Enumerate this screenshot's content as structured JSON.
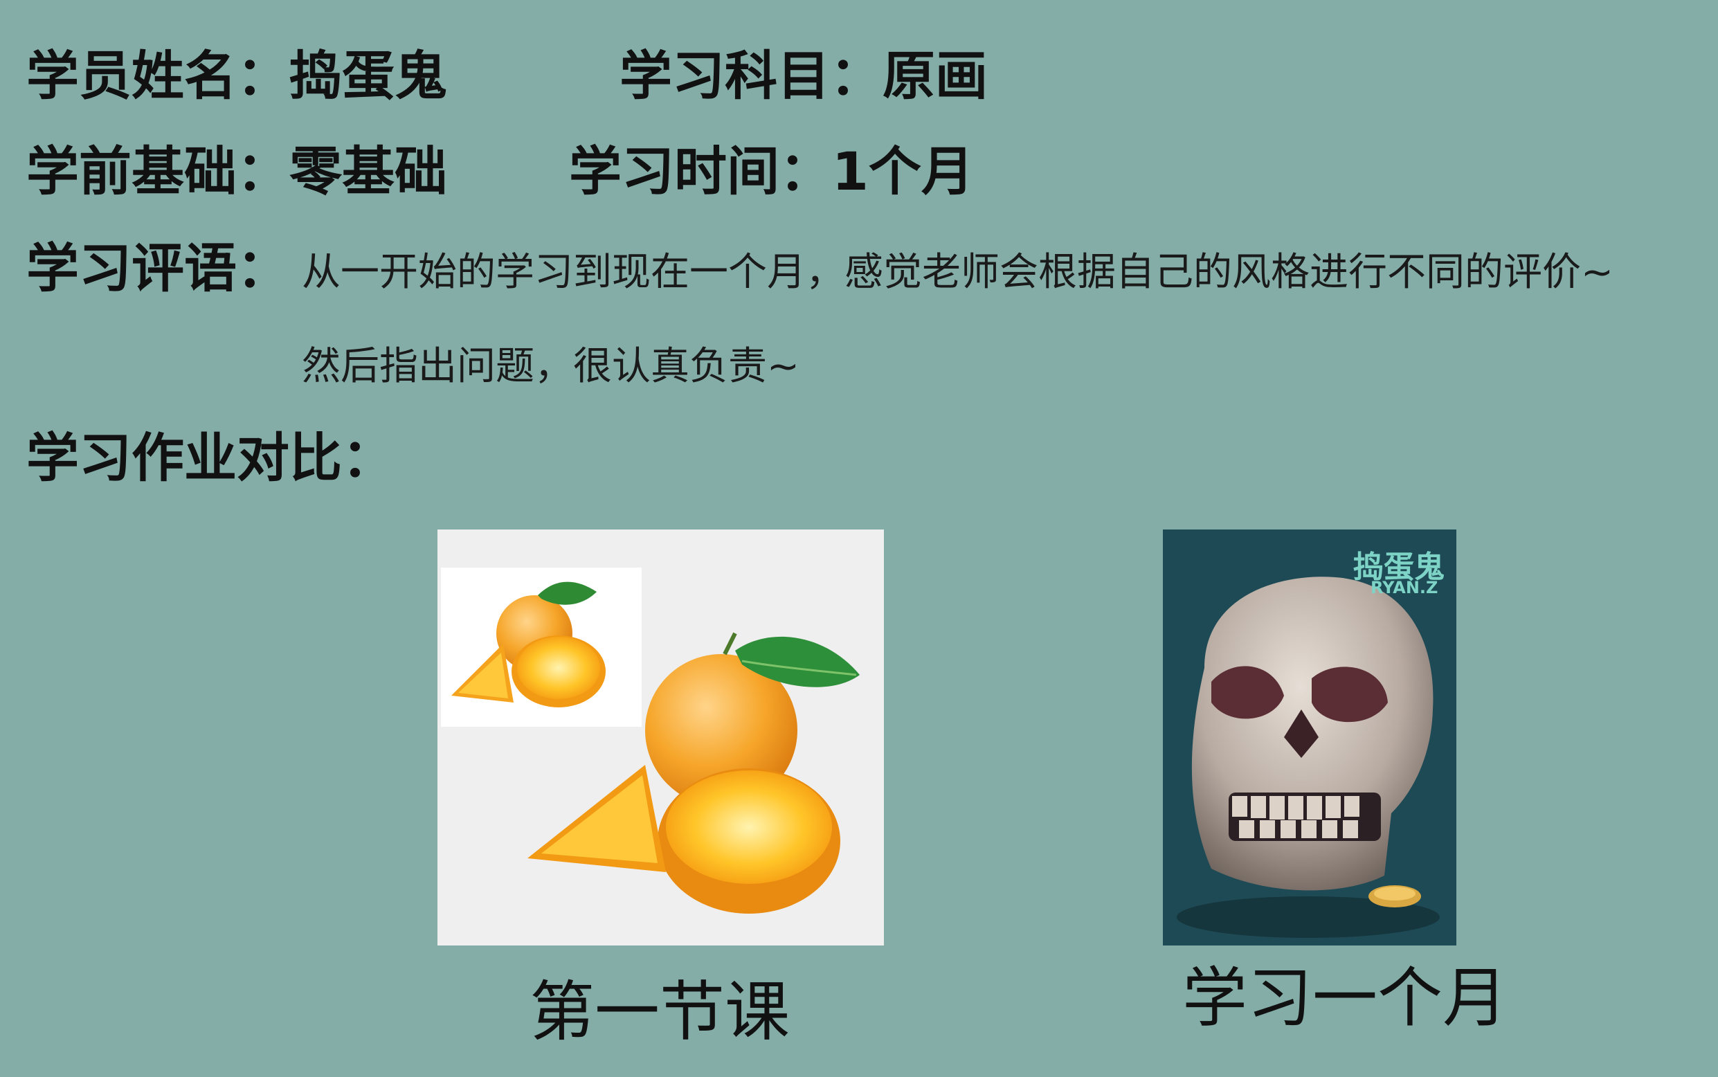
{
  "profile": {
    "name_label": "学员姓名：",
    "name_value": "捣蛋鬼",
    "subject_label": "学习科目：",
    "subject_value": "原画",
    "foundation_label": "学前基础：",
    "foundation_value": "零基础",
    "duration_label": "学习时间：",
    "duration_value": "1个月"
  },
  "review": {
    "label": "学习评语：",
    "line1": "从一开始的学习到现在一个月，感觉老师会根据自己的风格进行不同的评价~",
    "line2": "然后指出问题，很认真负责~"
  },
  "comparison": {
    "label": "学习作业对比：",
    "before_caption": "第一节课",
    "after_caption": "学习一个月",
    "signature": "捣蛋鬼",
    "signature_sub": "RYAN.Z"
  },
  "colors": {
    "background": "#84ADA8",
    "orange": "#F4A11E",
    "skull_bg": "#1E4A55"
  }
}
